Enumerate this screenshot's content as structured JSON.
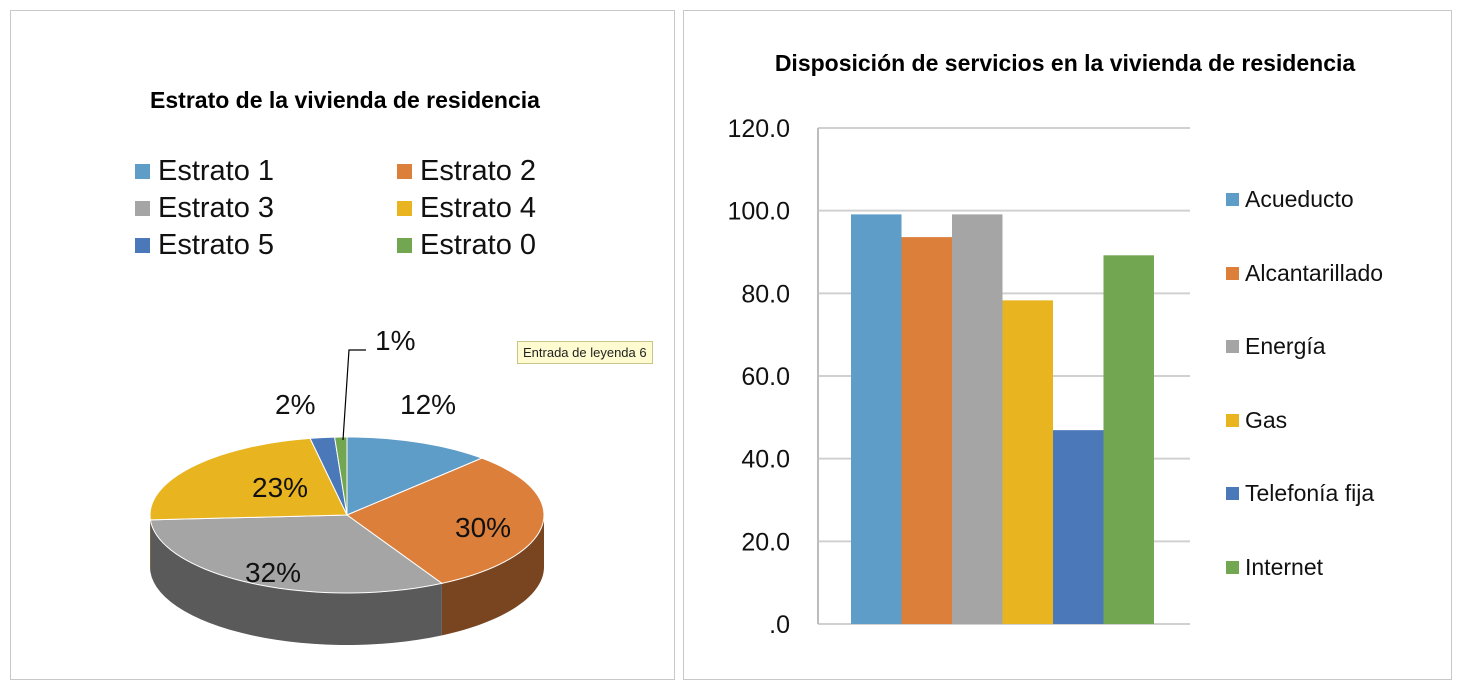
{
  "chart_data": [
    {
      "type": "pie",
      "title": "Estrato de la vivienda de residencia",
      "three_d": true,
      "legend_position": "top",
      "slices": [
        {
          "name": "Estrato 1",
          "value": 12,
          "label": "12%",
          "color": "#5f9dc9"
        },
        {
          "name": "Estrato 2",
          "value": 30,
          "label": "30%",
          "color": "#dc7f3b"
        },
        {
          "name": "Estrato 3",
          "value": 32,
          "label": "32%",
          "color": "#a5a5a5"
        },
        {
          "name": "Estrato 4",
          "value": 23,
          "label": "23%",
          "color": "#e8b521"
        },
        {
          "name": "Estrato 5",
          "value": 2,
          "label": "2%",
          "color": "#4a78b8"
        },
        {
          "name": "Estrato 0",
          "value": 1,
          "label": "1%",
          "color": "#72a651"
        }
      ],
      "tooltip": "Entrada de leyenda 6"
    },
    {
      "type": "bar",
      "title": "Disposición de servicios en  la vivienda de residencia",
      "legend_position": "right",
      "grid": true,
      "ylim": [
        0,
        120
      ],
      "yticks": [
        ".0",
        "20.0",
        "40.0",
        "60.0",
        "80.0",
        "100.0",
        "120.0"
      ],
      "series": [
        {
          "name": "Acueducto",
          "value": 99.1,
          "color": "#5f9dc9"
        },
        {
          "name": "Alcantarillado",
          "value": 93.6,
          "color": "#dc7f3b"
        },
        {
          "name": "Energía",
          "value": 99.1,
          "color": "#a5a5a5"
        },
        {
          "name": "Gas",
          "value": 78.3,
          "color": "#e8b521"
        },
        {
          "name": "Telefonía fija",
          "value": 46.9,
          "color": "#4a78b8"
        },
        {
          "name": "Internet",
          "value": 89.2,
          "color": "#72a651"
        }
      ]
    }
  ]
}
